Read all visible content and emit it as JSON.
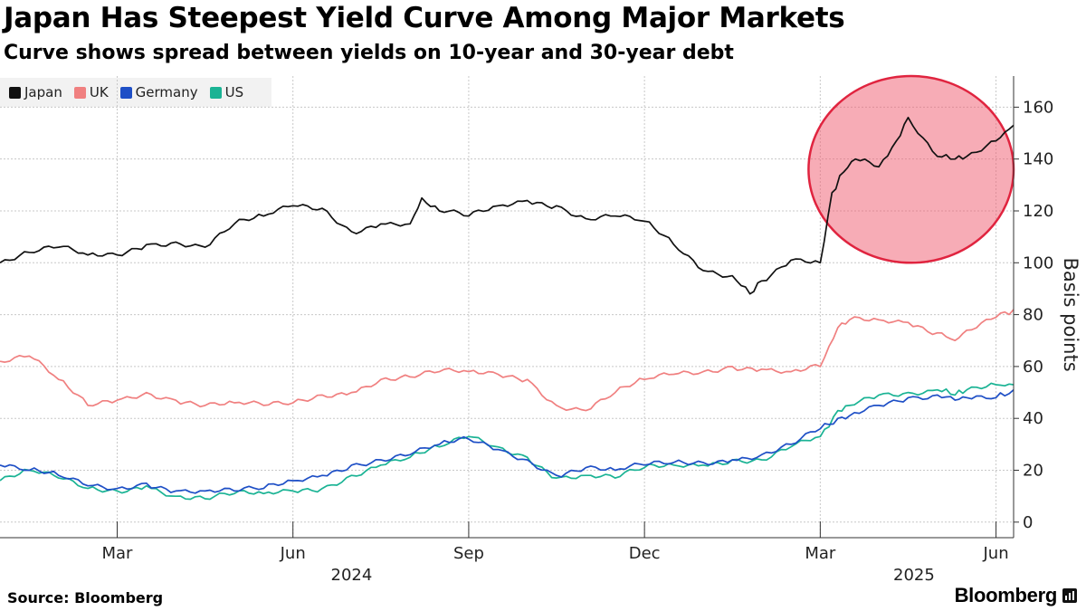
{
  "chart_data": {
    "type": "line",
    "title": "Japan Has Steepest Yield Curve Among Major Markets",
    "subtitle": "Curve shows spread between yields on 10-year and 30-year debt",
    "ylabel": "Basis points",
    "ylim": [
      -6,
      172
    ],
    "yticks": [
      0,
      20,
      40,
      60,
      80,
      100,
      120,
      140,
      160
    ],
    "xlim": [
      0,
      17.3
    ],
    "x_unit": "months since 2024-01-01",
    "xticks": [
      {
        "label": "Mar",
        "x": 2.0
      },
      {
        "label": "Jun",
        "x": 5.0
      },
      {
        "label": "Sep",
        "x": 8.0
      },
      {
        "label": "Dec",
        "x": 11.0
      },
      {
        "label": "Mar",
        "x": 14.0
      },
      {
        "label": "Jun",
        "x": 17.0
      }
    ],
    "year_labels": [
      {
        "label": "2024",
        "x": 6.0
      },
      {
        "label": "2025",
        "x": 15.6
      }
    ],
    "legend_position": "top-left",
    "grid": true,
    "highlight": {
      "shape": "ellipse",
      "label_series": "Japan",
      "x_range": [
        13.8,
        17.3
      ],
      "y_range": [
        100,
        172
      ],
      "color": "#f05a6e"
    },
    "series": [
      {
        "name": "Japan",
        "color": "#111111",
        "x": [
          0.0,
          0.5,
          1.0,
          1.5,
          2.0,
          2.5,
          3.0,
          3.5,
          4.0,
          4.5,
          5.0,
          5.5,
          6.0,
          6.5,
          7.0,
          7.2,
          7.5,
          8.0,
          8.5,
          9.0,
          9.5,
          10.0,
          10.5,
          11.0,
          11.5,
          12.0,
          12.5,
          12.8,
          13.0,
          13.5,
          14.0,
          14.2,
          14.4,
          14.6,
          15.0,
          15.3,
          15.5,
          16.0,
          16.3,
          16.5,
          17.0,
          17.3
        ],
        "values": [
          100,
          104,
          106,
          103,
          103,
          107,
          108,
          106,
          115,
          118,
          122,
          121,
          112,
          115,
          115,
          125,
          120,
          118,
          122,
          124,
          122,
          117,
          118,
          116,
          107,
          97,
          95,
          88,
          93,
          101,
          100,
          127,
          135,
          140,
          137,
          147,
          156,
          141,
          140,
          141,
          147,
          153
        ]
      },
      {
        "name": "UK",
        "color": "#f08080",
        "x": [
          0.0,
          0.5,
          1.0,
          1.5,
          2.0,
          2.5,
          3.0,
          3.5,
          4.0,
          4.5,
          5.0,
          5.5,
          6.0,
          6.5,
          7.0,
          7.5,
          8.0,
          8.5,
          9.0,
          9.5,
          10.0,
          10.5,
          11.0,
          11.5,
          12.0,
          12.5,
          13.0,
          13.5,
          14.0,
          14.3,
          14.5,
          15.0,
          15.5,
          16.0,
          16.3,
          16.5,
          17.0,
          17.3
        ],
        "values": [
          62,
          64,
          55,
          45,
          47,
          50,
          47,
          45,
          46,
          45,
          46,
          49,
          50,
          55,
          56,
          58,
          58,
          57,
          55,
          45,
          43,
          50,
          55,
          57,
          58,
          60,
          59,
          58,
          60,
          75,
          78,
          78,
          77,
          73,
          70,
          74,
          79,
          82
        ]
      },
      {
        "name": "Germany",
        "color": "#1e4fc6",
        "x": [
          0.0,
          0.5,
          1.0,
          1.5,
          2.0,
          2.5,
          3.0,
          3.5,
          4.0,
          4.5,
          5.0,
          5.5,
          6.0,
          6.5,
          7.0,
          7.5,
          8.0,
          8.5,
          9.0,
          9.5,
          10.0,
          10.5,
          11.0,
          11.5,
          12.0,
          12.5,
          13.0,
          13.5,
          14.0,
          14.3,
          14.5,
          15.0,
          15.5,
          16.0,
          16.3,
          16.5,
          17.0,
          17.3
        ],
        "values": [
          22,
          20,
          18,
          14,
          13,
          15,
          12,
          12,
          12,
          13,
          16,
          18,
          22,
          24,
          26,
          30,
          32,
          28,
          24,
          18,
          21,
          20,
          22,
          23,
          23,
          24,
          26,
          30,
          36,
          40,
          41,
          45,
          48,
          49,
          47,
          48,
          48,
          51
        ]
      },
      {
        "name": "US",
        "color": "#1ab394",
        "x": [
          0.0,
          0.5,
          1.0,
          1.5,
          2.0,
          2.5,
          3.0,
          3.5,
          4.0,
          4.5,
          5.0,
          5.5,
          6.0,
          6.5,
          7.0,
          7.5,
          8.0,
          8.5,
          9.0,
          9.5,
          10.0,
          10.5,
          11.0,
          11.5,
          12.0,
          12.5,
          13.0,
          13.5,
          14.0,
          14.3,
          14.5,
          15.0,
          15.5,
          16.0,
          16.3,
          16.5,
          17.0,
          17.3
        ],
        "values": [
          16,
          20,
          17,
          13,
          12,
          14,
          10,
          9,
          11,
          11,
          12,
          13,
          18,
          22,
          25,
          29,
          33,
          29,
          25,
          17,
          18,
          17,
          21,
          22,
          22,
          24,
          24,
          29,
          33,
          43,
          45,
          49,
          50,
          51,
          49,
          51,
          53,
          53
        ]
      }
    ]
  },
  "legend": {
    "items": [
      {
        "label": "Japan",
        "color": "#111111"
      },
      {
        "label": "UK",
        "color": "#f08080"
      },
      {
        "label": "Germany",
        "color": "#1e4fc6"
      },
      {
        "label": "US",
        "color": "#1ab394"
      }
    ]
  },
  "footer": {
    "source": "Source: Bloomberg",
    "brand": "Bloomberg",
    "brand_icon": "bloomberg-chart-icon"
  }
}
